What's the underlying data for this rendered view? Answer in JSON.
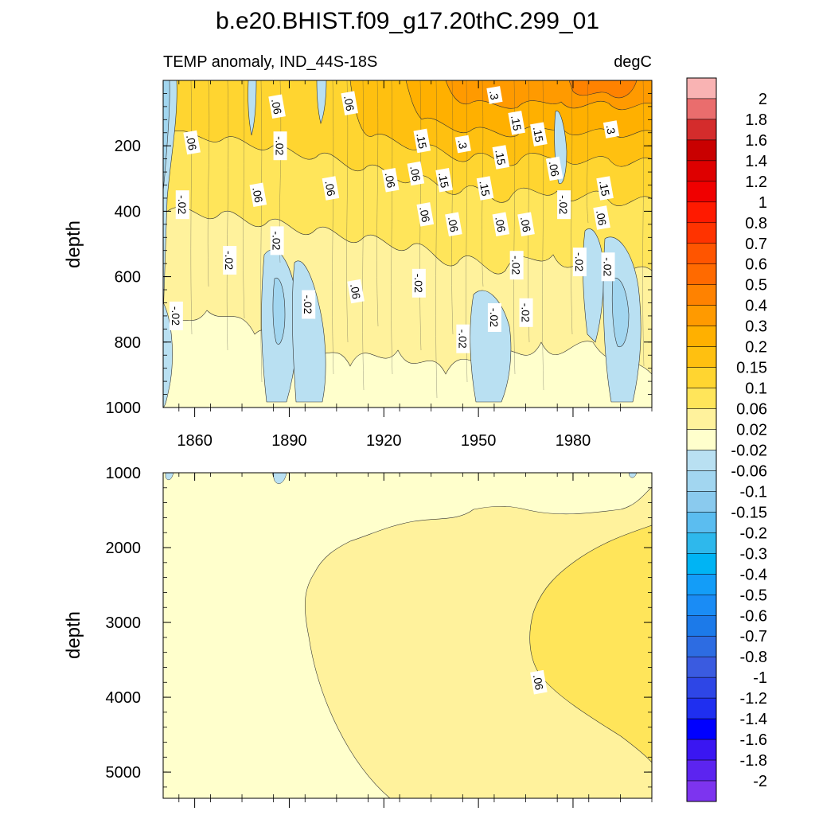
{
  "chart_data": {
    "type": "contour",
    "title": "b.e20.BHIST.f09_g17.20thC.299_01",
    "variable_label": "TEMP anomaly, IND_44S-18S",
    "units_label": "degC",
    "x_axis": {
      "range": [
        1850,
        2005
      ],
      "ticks": [
        "1860",
        "1890",
        "1920",
        "1950",
        "1980"
      ],
      "tick_values": [
        1860,
        1890,
        1920,
        1950,
        1980
      ]
    },
    "panels": [
      {
        "name": "upper",
        "ylabel": "depth",
        "yrange": [
          0,
          1000
        ],
        "yticks": [
          "200",
          "400",
          "600",
          "800",
          "1000"
        ],
        "ytick_values": [
          200,
          400,
          600,
          800,
          1000
        ],
        "contour_labels": [
          {
            "text": ".06",
            "year": 1886,
            "depth": 80
          },
          {
            "text": ".06",
            "year": 1909,
            "depth": 70
          },
          {
            "text": ".3",
            "year": 1955,
            "depth": 45
          },
          {
            "text": ".15",
            "year": 1962,
            "depth": 130
          },
          {
            "text": ".15",
            "year": 1969,
            "depth": 165
          },
          {
            "text": ".3",
            "year": 1992,
            "depth": 150
          },
          {
            "text": ".06",
            "year": 1859,
            "depth": 190
          },
          {
            "text": "-.02",
            "year": 1887,
            "depth": 200
          },
          {
            "text": ".15",
            "year": 1932,
            "depth": 185
          },
          {
            "text": ".3",
            "year": 1945,
            "depth": 195
          },
          {
            "text": ".15",
            "year": 1957,
            "depth": 235
          },
          {
            "text": ".06",
            "year": 1922,
            "depth": 305
          },
          {
            "text": ".06",
            "year": 1930,
            "depth": 285
          },
          {
            "text": ".15",
            "year": 1939,
            "depth": 305
          },
          {
            "text": ".15",
            "year": 1952,
            "depth": 330
          },
          {
            "text": ".06",
            "year": 1974,
            "depth": 270
          },
          {
            "text": ".15",
            "year": 1990,
            "depth": 330
          },
          {
            "text": "-.02",
            "year": 1856,
            "depth": 380
          },
          {
            "text": ".06",
            "year": 1880,
            "depth": 350
          },
          {
            "text": ".06",
            "year": 1903,
            "depth": 330
          },
          {
            "text": "-.02",
            "year": 1977,
            "depth": 380
          },
          {
            "text": ".06",
            "year": 1933,
            "depth": 410
          },
          {
            "text": ".06",
            "year": 1942,
            "depth": 440
          },
          {
            "text": ".06",
            "year": 1957,
            "depth": 440
          },
          {
            "text": ".06",
            "year": 1965,
            "depth": 440
          },
          {
            "text": ".06",
            "year": 1989,
            "depth": 420
          },
          {
            "text": "-.02",
            "year": 1886,
            "depth": 490
          },
          {
            "text": "-.02",
            "year": 1871,
            "depth": 550
          },
          {
            "text": "-.02",
            "year": 1962,
            "depth": 565
          },
          {
            "text": "-.02",
            "year": 1982,
            "depth": 555
          },
          {
            "text": "-.02",
            "year": 1991,
            "depth": 570
          },
          {
            "text": ".06",
            "year": 1911,
            "depth": 645
          },
          {
            "text": "-.02",
            "year": 1931,
            "depth": 620
          },
          {
            "text": "-.02",
            "year": 1896,
            "depth": 685
          },
          {
            "text": "-.02",
            "year": 1854,
            "depth": 720
          },
          {
            "text": "-.02",
            "year": 1965,
            "depth": 710
          },
          {
            "text": "-.02",
            "year": 1955,
            "depth": 725
          },
          {
            "text": "-.02",
            "year": 1945,
            "depth": 790
          }
        ]
      },
      {
        "name": "lower",
        "ylabel": "depth",
        "yrange": [
          1000,
          5350
        ],
        "yticks": [
          "1000",
          "2000",
          "3000",
          "4000",
          "5000"
        ],
        "ytick_values": [
          1000,
          2000,
          3000,
          4000,
          5000
        ],
        "contour_labels": [
          {
            "text": ".06",
            "year": 1969,
            "depth": 3800
          }
        ]
      }
    ],
    "colorbar": {
      "levels": [
        "2",
        "1.8",
        "1.6",
        "1.4",
        "1.2",
        "1",
        "0.8",
        "0.7",
        "0.6",
        "0.5",
        "0.4",
        "0.3",
        "0.2",
        "0.15",
        "0.1",
        "0.06",
        "0.02",
        "-0.02",
        "-0.06",
        "-0.1",
        "-0.15",
        "-0.2",
        "-0.3",
        "-0.4",
        "-0.5",
        "-0.6",
        "-0.7",
        "-0.8",
        "-1",
        "-1.2",
        "-1.4",
        "-1.6",
        "-1.8",
        "-2"
      ],
      "colors": [
        "#f9b3b3",
        "#ea6d6d",
        "#d42c2c",
        "#c90000",
        "#de0000",
        "#f00000",
        "#ff1a00",
        "#ff3300",
        "#ff5500",
        "#ff6a00",
        "#ff8200",
        "#ff9a00",
        "#ffb000",
        "#ffc010",
        "#ffd530",
        "#ffe55a",
        "#fff29c",
        "#ffffcc",
        "#b9e0f2",
        "#a2d6f0",
        "#8acaee",
        "#5bbdf0",
        "#2eb8ec",
        "#00b4f4",
        "#139df8",
        "#1a8cf5",
        "#1c7ae9",
        "#2d6ce2",
        "#3a5be0",
        "#2e46e6",
        "#1f2ff0",
        "#0000ff",
        "#3a16f2",
        "#5c24f0",
        "#7d34ef"
      ]
    }
  }
}
